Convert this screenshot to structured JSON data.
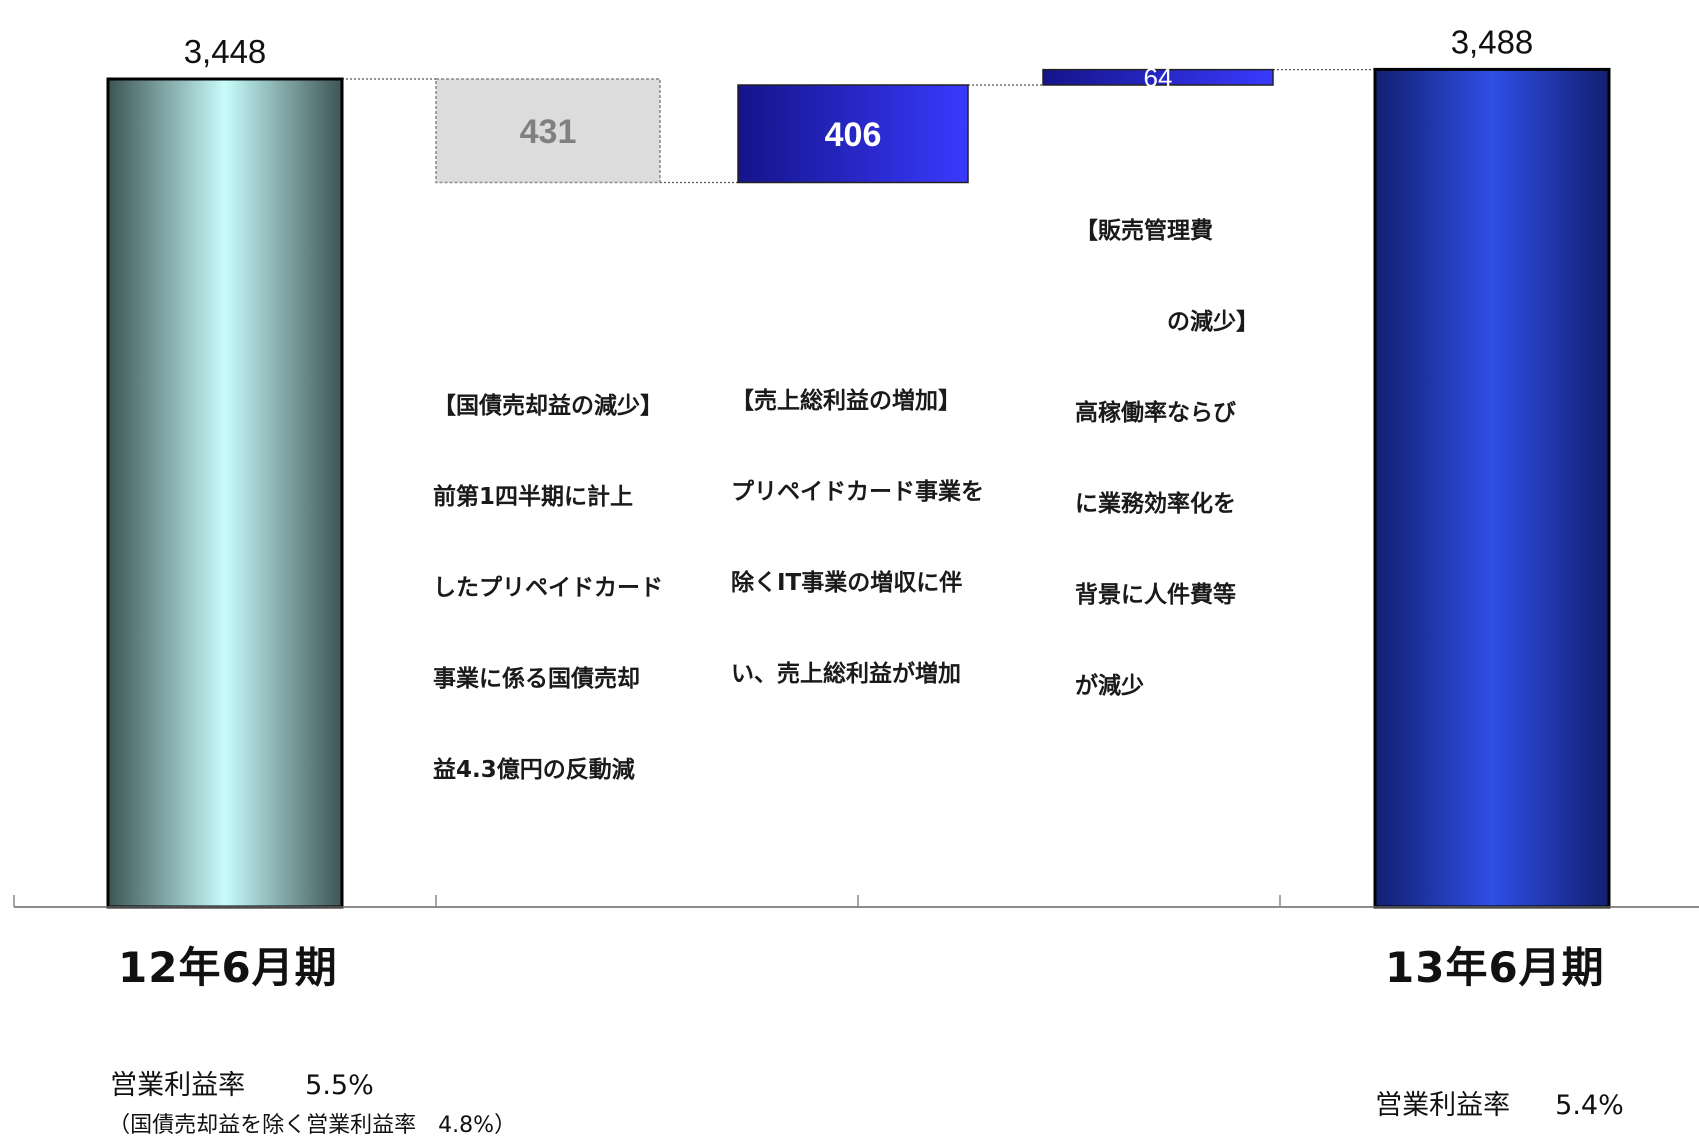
{
  "chart_data": {
    "type": "waterfall",
    "unit": "",
    "steps": [
      {
        "label": "12年6月期",
        "value": 3448,
        "kind": "total",
        "value_label": "3,448"
      },
      {
        "label": "",
        "value": -431,
        "kind": "decrease",
        "value_label": "431"
      },
      {
        "label": "",
        "value": 406,
        "kind": "increase",
        "value_label": "406"
      },
      {
        "label": "",
        "value": 64,
        "kind": "increase",
        "value_label": "64"
      },
      {
        "label": "13年6月期",
        "value": 3488,
        "kind": "total",
        "value_label": "3,488"
      }
    ]
  },
  "annotations": {
    "bond_gain_decrease": [
      "【国債売却益の減少】",
      "前第1四半期に計上",
      "したプリペイドカード",
      "事業に係る国債売却",
      "益4.3億円の反動減"
    ],
    "gross_profit_increase": [
      "【売上総利益の増加】",
      "プリペイドカード事業を",
      "除くIT事業の増収に伴",
      "い、売上総利益が増加"
    ],
    "sga_decrease": [
      "【販売管理費",
      "　　　　の減少】",
      "高稼働率ならび",
      "に業務効率化を",
      "背景に人件費等",
      "が減少"
    ]
  },
  "periods": {
    "left": "12年6月期",
    "right": "13年6月期"
  },
  "operating_margin": {
    "left_label": "営業利益率",
    "left_value": "5.5%",
    "left_note": "（国債売却益を除く営業利益率　4.8%）",
    "right_label": "営業利益率",
    "right_value": "5.4%"
  },
  "colors": {
    "left_total_edge": "#3d5454",
    "left_total_center": "#c8fcfc",
    "decrease_fill": "#dcdcdc",
    "decrease_text": "#808080",
    "increase_dark": "#14148a",
    "increase_light": "#3a3aff",
    "right_total_dark": "#121f70",
    "right_total_light": "#2f4fe6"
  }
}
